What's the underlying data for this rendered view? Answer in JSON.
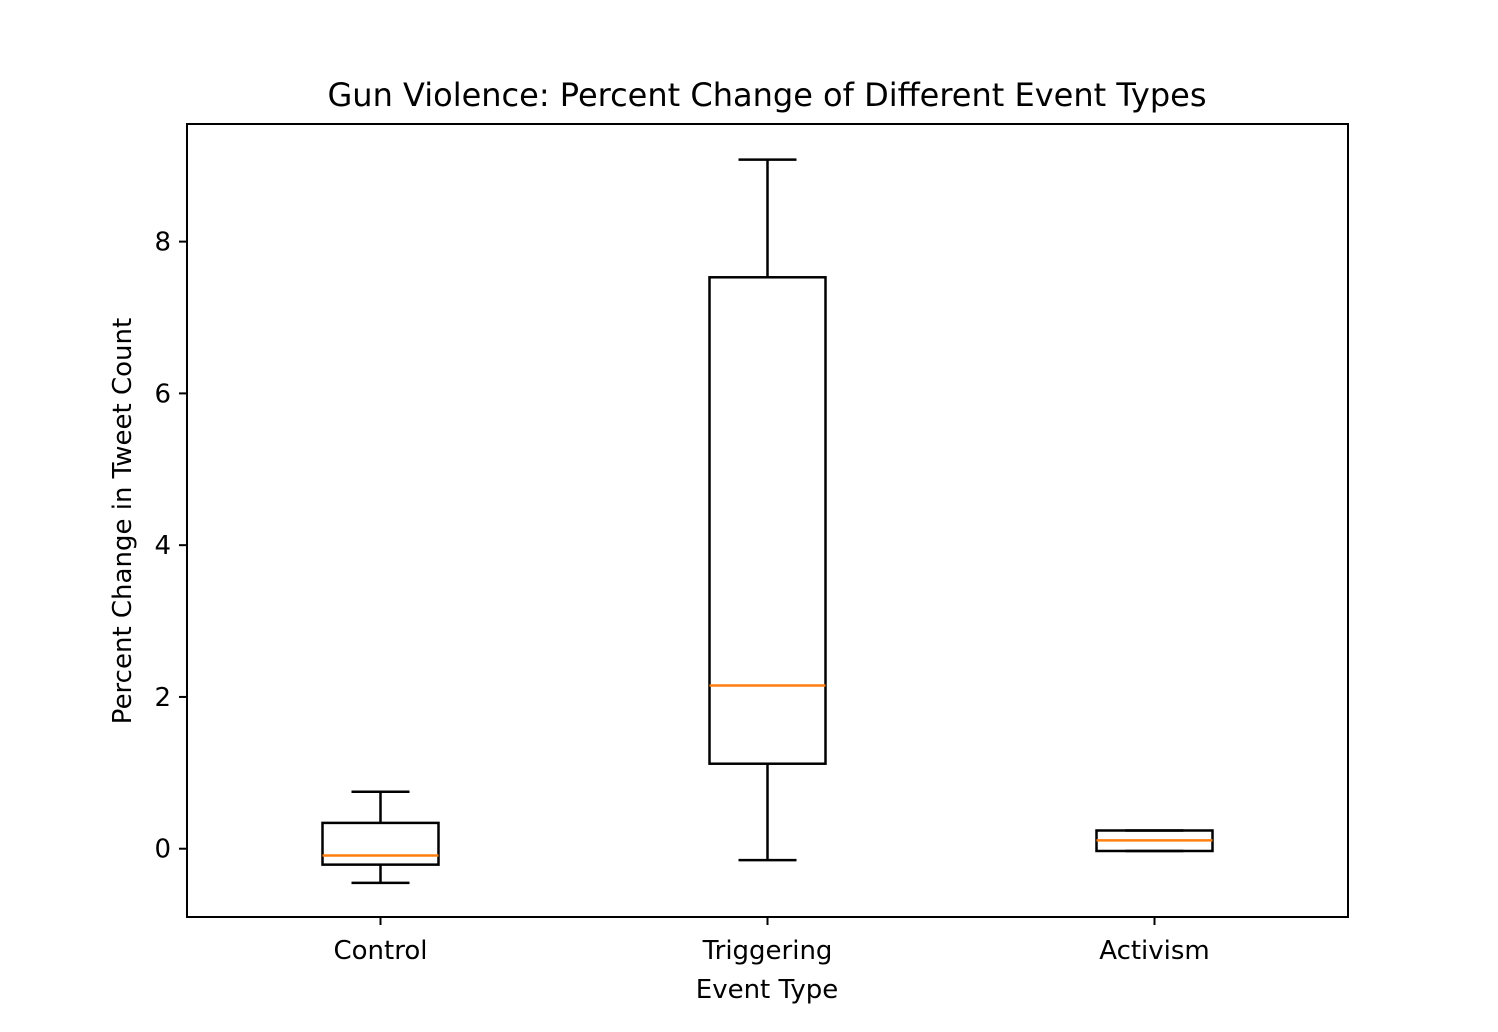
{
  "chart_data": {
    "type": "box",
    "title": "Gun Violence: Percent Change of Different Event Types",
    "xlabel": "Event Type",
    "ylabel": "Percent Change in Tweet Count",
    "categories": [
      "Control",
      "Triggering",
      "Activism"
    ],
    "ylim": [
      -0.9,
      9.55
    ],
    "yticks": [
      0,
      2,
      4,
      6,
      8
    ],
    "boxes": [
      {
        "category": "Control",
        "whisker_low": -0.45,
        "q1": -0.21,
        "median": -0.09,
        "q3": 0.34,
        "whisker_high": 0.75
      },
      {
        "category": "Triggering",
        "whisker_low": -0.15,
        "q1": 1.12,
        "median": 2.15,
        "q3": 7.53,
        "whisker_high": 9.08
      },
      {
        "category": "Activism",
        "whisker_low": -0.03,
        "q1": -0.03,
        "median": 0.11,
        "q3": 0.24,
        "whisker_high": 0.24
      }
    ],
    "box_color": "#000000",
    "median_color": "#ff7f0e",
    "grid": false,
    "legend": "none"
  }
}
